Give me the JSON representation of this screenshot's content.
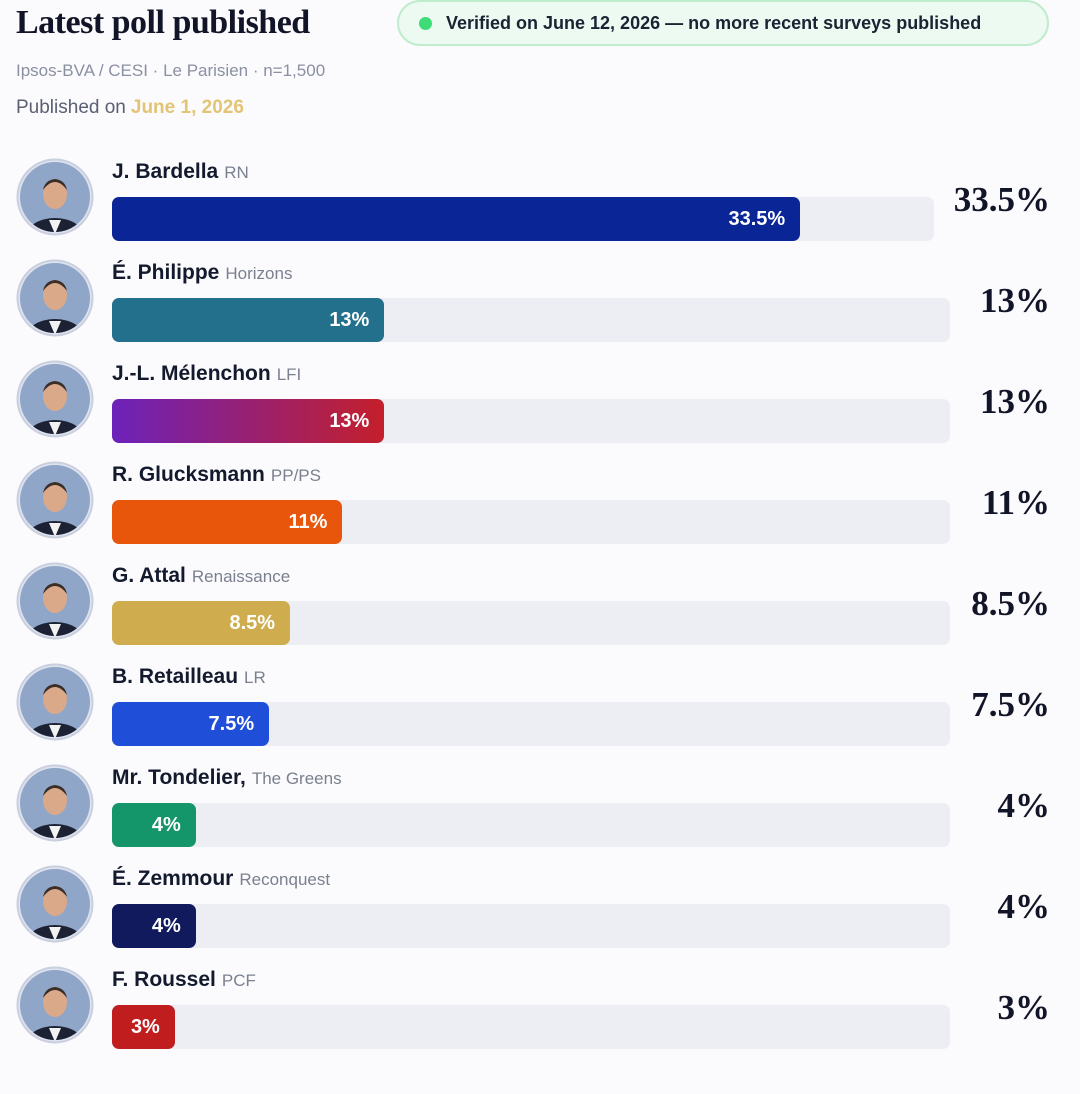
{
  "chart_data": {
    "type": "bar",
    "orientation": "horizontal",
    "title": "Latest poll published",
    "badge": "Verified on June 12, 2026 — no more recent surveys published",
    "subtitle": "Ipsos-BVA / CESI · Le Parisien · n=1,500",
    "published_prefix": "Published on",
    "published_date": "June 1, 2026",
    "categories": [
      "J. Bardella",
      "É. Philippe",
      "J.-L. Mélenchon",
      "R. Glucksmann",
      "G. Attal",
      "B. Retailleau",
      "Mr. Tondelier,",
      "É. Zemmour",
      "F. Roussel"
    ],
    "parties": [
      "RN",
      "Horizons",
      "LFI",
      "PP/PS",
      "Renaissance",
      "LR",
      "The Greens",
      "Reconquest",
      "PCF"
    ],
    "values": [
      33.5,
      13,
      13,
      11,
      8.5,
      7.5,
      4,
      4,
      3
    ],
    "value_labels": [
      "33.5%",
      "13%",
      "13%",
      "11%",
      "8.5%",
      "7.5%",
      "4%",
      "4%",
      "3%"
    ],
    "colors": [
      "#0a2696",
      "#23708c",
      "linear-gradient(90deg, #6c22ba, #c41f2b)",
      "#e8560c",
      "#cfad4e",
      "#1f4fd8",
      "#15956a",
      "#101a5c",
      "#c01d1f"
    ],
    "xlim": [
      0,
      40
    ]
  }
}
